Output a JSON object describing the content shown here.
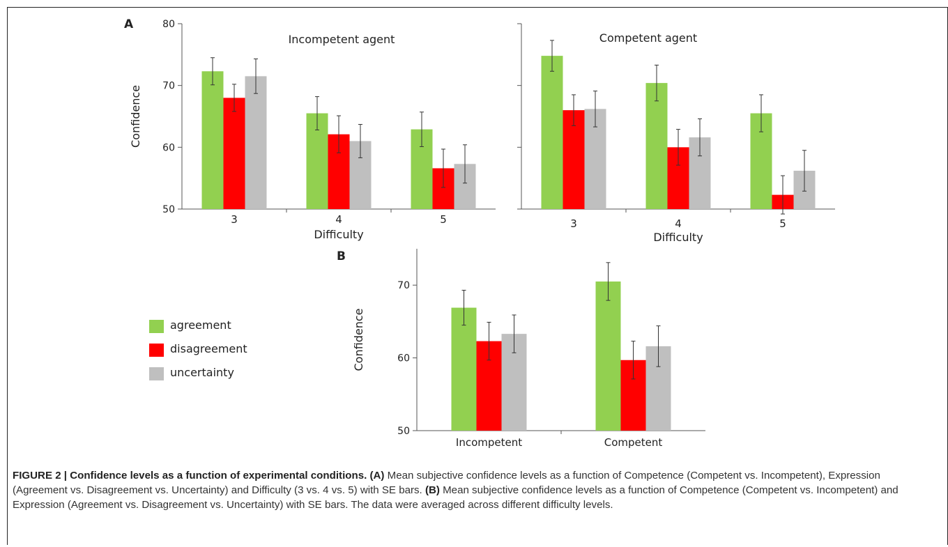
{
  "colors": {
    "agreement": "#92d050",
    "disagreement": "#ff0000",
    "uncertainty": "#bfbfbf",
    "axis": "#555555",
    "errorbar": "#333333"
  },
  "legend": [
    {
      "key": "agreement",
      "label": "agreement"
    },
    {
      "key": "disagreement",
      "label": "disagreement"
    },
    {
      "key": "uncertainty",
      "label": "uncertainty"
    }
  ],
  "chart_data": [
    {
      "type": "bar",
      "panel": "A",
      "title": "Incompetent agent",
      "xlabel": "Difficulty",
      "ylabel": "Confidence",
      "ylim": [
        50,
        80
      ],
      "yticks": [
        50,
        60,
        70,
        80
      ],
      "categories": [
        "3",
        "4",
        "5"
      ],
      "series": [
        {
          "name": "agreement",
          "values": [
            72.3,
            65.5,
            62.9
          ],
          "se": [
            2.2,
            2.7,
            2.8
          ]
        },
        {
          "name": "disagreement",
          "values": [
            68.0,
            62.1,
            56.6
          ],
          "se": [
            2.2,
            3.0,
            3.1
          ]
        },
        {
          "name": "uncertainty",
          "values": [
            71.5,
            61.0,
            57.3
          ],
          "se": [
            2.8,
            2.7,
            3.1
          ]
        }
      ]
    },
    {
      "type": "bar",
      "title": "Competent agent",
      "xlabel": "Difficulty",
      "ylabel": "",
      "ylim": [
        50,
        80
      ],
      "yticks": [],
      "categories": [
        "3",
        "4",
        "5"
      ],
      "series": [
        {
          "name": "agreement",
          "values": [
            74.8,
            70.4,
            65.5
          ],
          "se": [
            2.5,
            2.9,
            3.0
          ]
        },
        {
          "name": "disagreement",
          "values": [
            66.0,
            60.0,
            52.3
          ],
          "se": [
            2.5,
            2.9,
            3.1
          ]
        },
        {
          "name": "uncertainty",
          "values": [
            66.2,
            61.6,
            56.2
          ],
          "se": [
            2.9,
            3.0,
            3.3
          ]
        }
      ]
    },
    {
      "type": "bar",
      "panel": "B",
      "title": "",
      "xlabel": "",
      "ylabel": "Confidence",
      "ylim": [
        50,
        75
      ],
      "yticks": [
        50,
        60,
        70
      ],
      "categories": [
        "Incompetent",
        "Competent"
      ],
      "series": [
        {
          "name": "agreement",
          "values": [
            66.9,
            70.5
          ],
          "se": [
            2.4,
            2.6
          ]
        },
        {
          "name": "disagreement",
          "values": [
            62.3,
            59.7
          ],
          "se": [
            2.6,
            2.6
          ]
        },
        {
          "name": "uncertainty",
          "values": [
            63.3,
            61.6
          ],
          "se": [
            2.6,
            2.8
          ]
        }
      ]
    }
  ],
  "caption": {
    "label": "FIGURE 2 | Confidence levels as a function of experimental conditions.",
    "a_label": "(A)",
    "a_text": "Mean subjective confidence levels as a function of Competence (Competent vs. Incompetent), Expression (Agreement vs. Disagreement vs. Uncertainty) and Difficulty (3 vs. 4 vs. 5) with SE bars.",
    "b_label": "(B)",
    "b_text": "Mean subjective confidence levels as a function of Competence (Competent vs. Incompetent) and Expression (Agreement vs. Disagreement vs. Uncertainty) with SE bars. The data were averaged across different difficulty levels."
  }
}
